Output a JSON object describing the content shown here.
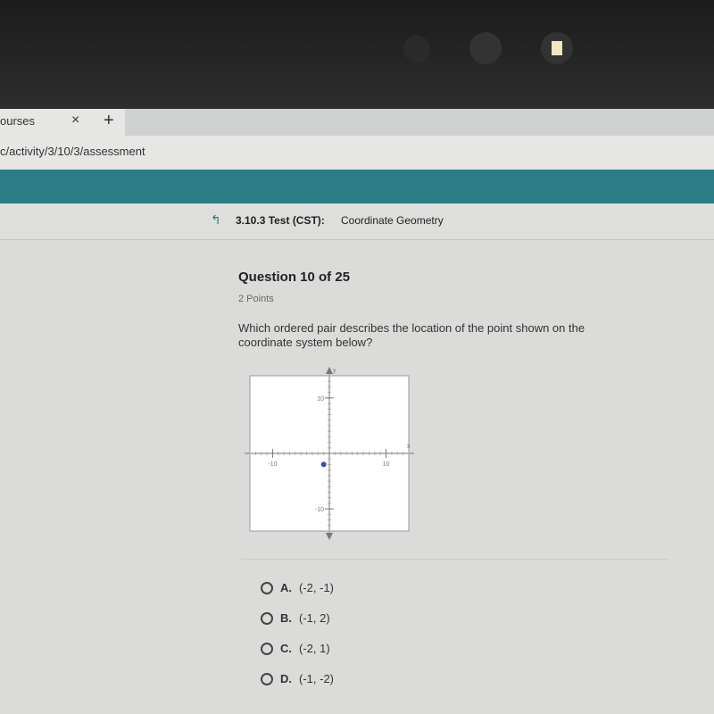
{
  "browser": {
    "tab_title": "ourses",
    "tab_close": "×",
    "new_tab": "+",
    "url": "c/activity/3/10/3/assessment"
  },
  "header": {
    "code": "3.10.3 Test (CST):",
    "subject": "Coordinate Geometry"
  },
  "question": {
    "title": "Question 10 of 25",
    "points": "2 Points",
    "text": "Which ordered pair describes the location of the point shown on the coordinate system below?"
  },
  "graph": {
    "x_label": "x",
    "y_label": "y",
    "xlim": [
      -14,
      14
    ],
    "ylim": [
      -14,
      14
    ],
    "xticks": [
      -10,
      10
    ],
    "yticks": [
      -10,
      10
    ],
    "point": {
      "x": -1,
      "y": -2
    },
    "point_color": "#2f4fb5"
  },
  "options": [
    {
      "letter": "A.",
      "text": "(-2, -1)"
    },
    {
      "letter": "B.",
      "text": "(-1, 2)"
    },
    {
      "letter": "C.",
      "text": "(-2, 1)"
    },
    {
      "letter": "D.",
      "text": "(-1, -2)"
    }
  ]
}
